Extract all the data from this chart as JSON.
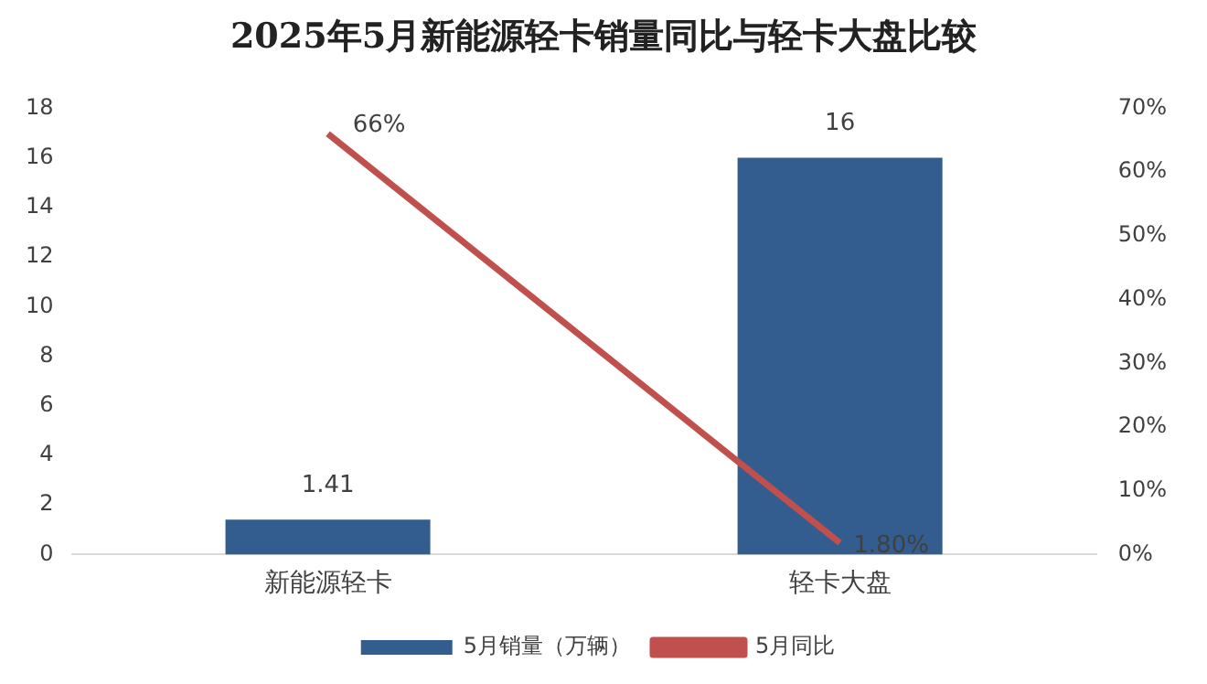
{
  "chart_data": {
    "type": "bar",
    "title": "2025年5月新能源轻卡销量同比与轻卡大盘比较",
    "categories": [
      "新能源轻卡",
      "轻卡大盘"
    ],
    "series": [
      {
        "name": "5月销量（万辆）",
        "color": "#335c8f",
        "values": [
          1.41,
          16
        ],
        "value_labels": [
          "1.41",
          "16"
        ]
      },
      {
        "name": "5月同比",
        "type": "line",
        "axis": "y2",
        "color": "#c0504d",
        "values": [
          66,
          1.8
        ],
        "value_labels": [
          "66%",
          "1.80%"
        ]
      }
    ],
    "ylim": [
      0,
      18
    ],
    "yticks": [
      0,
      2,
      4,
      6,
      8,
      10,
      12,
      14,
      16,
      18
    ],
    "y2lim": [
      0,
      70
    ],
    "y2ticks": [
      {
        "value": 0,
        "label": "0%"
      },
      {
        "value": 10,
        "label": "10%"
      },
      {
        "value": 20,
        "label": "20%"
      },
      {
        "value": 30,
        "label": "30%"
      },
      {
        "value": 40,
        "label": "40%"
      },
      {
        "value": 50,
        "label": "50%"
      },
      {
        "value": 60,
        "label": "60%"
      },
      {
        "value": 70,
        "label": "70%"
      }
    ],
    "grid": false,
    "legend": "bottom",
    "marker": "none"
  }
}
